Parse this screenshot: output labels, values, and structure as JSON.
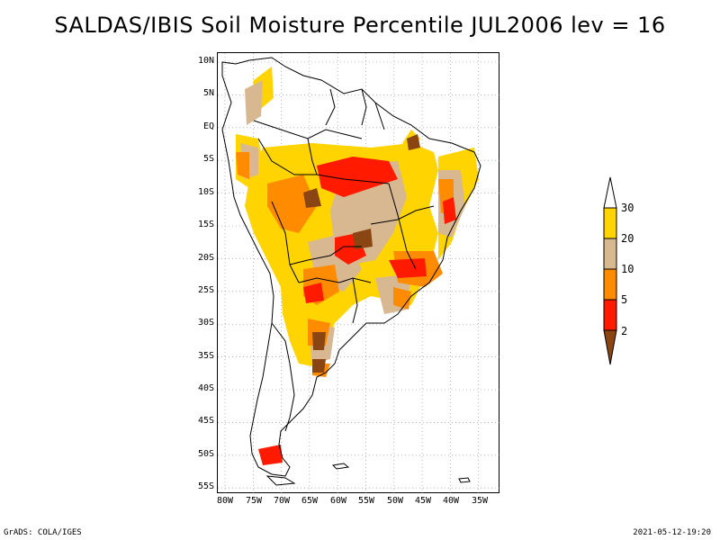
{
  "title": "SALDAS/IBIS Soil Moisture Percentile JUL2006 lev = 16",
  "map": {
    "lat_labels": [
      "10N",
      "5N",
      "EQ",
      "5S",
      "10S",
      "15S",
      "20S",
      "25S",
      "30S",
      "35S",
      "40S",
      "45S",
      "50S",
      "55S"
    ],
    "lon_labels": [
      "80W",
      "75W",
      "70W",
      "65W",
      "60W",
      "55W",
      "50W",
      "45W",
      "40W",
      "35W"
    ],
    "grid_lines": "dotted"
  },
  "legend": {
    "labels": [
      "30",
      "20",
      "10",
      "5",
      "2"
    ],
    "colors": {
      "above_30": "#ffffff",
      "20_30": "#ffd400",
      "10_20": "#d8b890",
      "5_10": "#ff8c00",
      "2_5": "#ff1a00",
      "below_2": "#8b4513"
    }
  },
  "footer": {
    "left": "GrADS: COLA/IGES",
    "right": "2021-05-12-19:20"
  }
}
